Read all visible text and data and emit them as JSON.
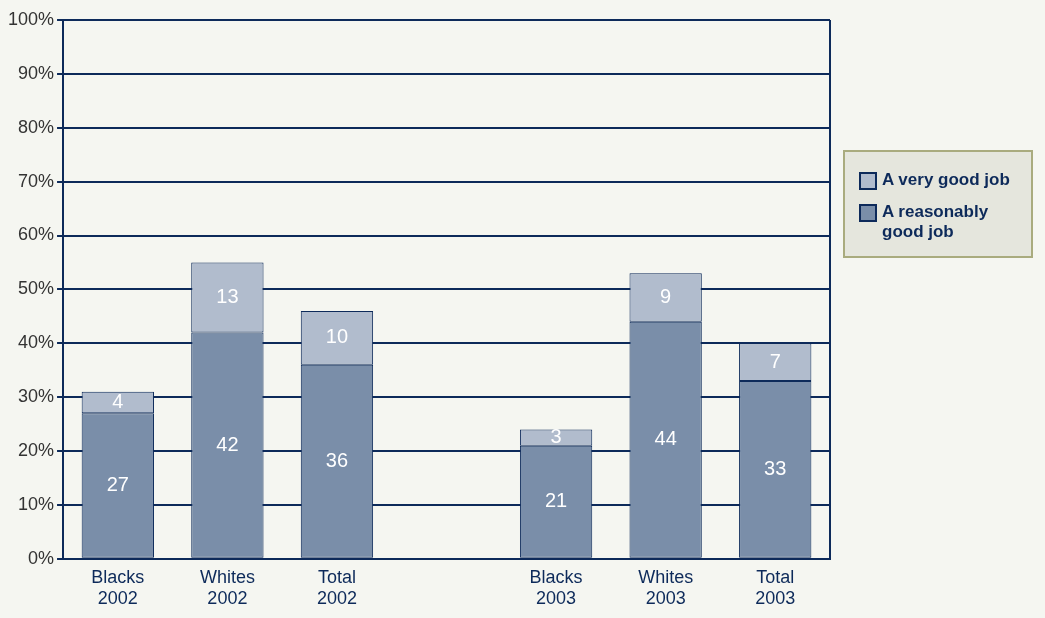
{
  "chart_data": {
    "type": "bar",
    "stacked": true,
    "categories": [
      "Blacks 2002",
      "Whites 2002",
      "Total 2002",
      null,
      "Blacks 2003",
      "Whites 2003",
      "Total 2003"
    ],
    "series": [
      {
        "name": "A reasonably good job",
        "color": "#7a8ea9",
        "values": [
          27,
          42,
          36,
          null,
          21,
          44,
          33
        ]
      },
      {
        "name": "A very good job",
        "color": "#b1bccd",
        "values": [
          4,
          13,
          10,
          null,
          3,
          9,
          7
        ]
      }
    ],
    "ylim": [
      0,
      100
    ],
    "yticks": [
      {
        "value": 0,
        "label": "0%"
      },
      {
        "value": 10,
        "label": "10%"
      },
      {
        "value": 20,
        "label": "20%"
      },
      {
        "value": 30,
        "label": "30%"
      },
      {
        "value": 40,
        "label": "40%"
      },
      {
        "value": 50,
        "label": "50%"
      },
      {
        "value": 60,
        "label": "60%"
      },
      {
        "value": 70,
        "label": "70%"
      },
      {
        "value": 80,
        "label": "80%"
      },
      {
        "value": 90,
        "label": "90%"
      },
      {
        "value": 100,
        "label": "100%"
      }
    ],
    "grid": "y",
    "legend": "right",
    "data_labels": true
  }
}
